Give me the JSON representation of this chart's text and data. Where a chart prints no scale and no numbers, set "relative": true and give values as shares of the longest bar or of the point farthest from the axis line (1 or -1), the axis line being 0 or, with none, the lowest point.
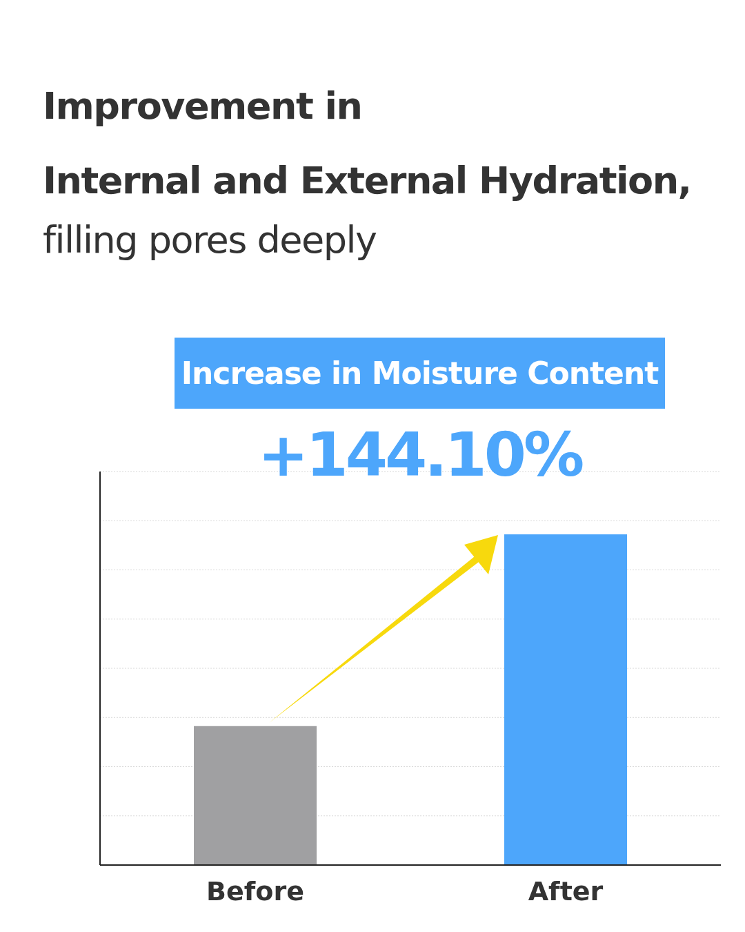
{
  "chart_data": {
    "type": "bar",
    "title": "Improvement in\nInternal and External Hydration,",
    "subtitle": "filling pores deeply",
    "categories": [
      "Before",
      "After"
    ],
    "values": [
      0.42,
      1
    ],
    "colors": [
      "#a0a0a2",
      "#4da6fb"
    ],
    "relative": true,
    "grid": "y",
    "annotations": [
      "Increase in Moisture Content",
      "+144.10%"
    ]
  }
}
